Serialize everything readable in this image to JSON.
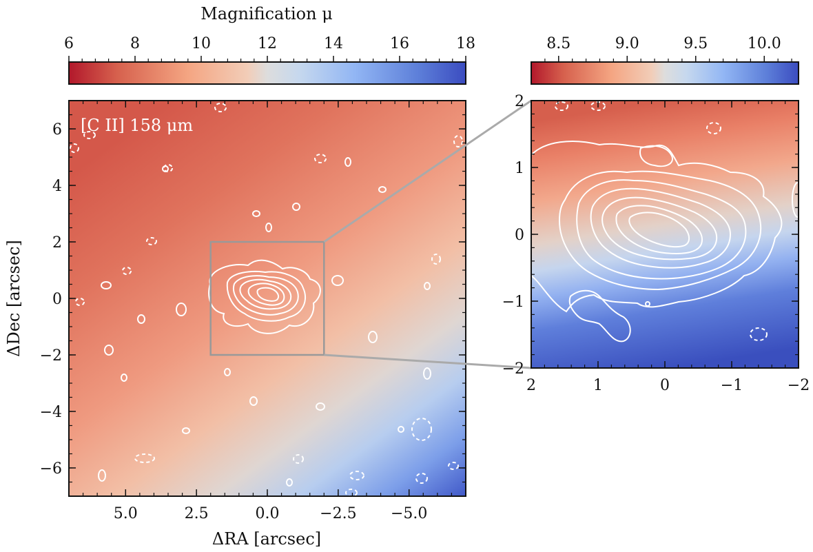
{
  "chart_data": [
    {
      "type": "heatmap",
      "title": "",
      "overlay_label": "[C II] 158 μm",
      "xlabel": "ΔRA [arcsec]",
      "ylabel": "ΔDec [arcsec]",
      "xlim": [
        7,
        -7
      ],
      "ylim": [
        -7,
        7
      ],
      "xticks": [
        5.0,
        2.5,
        0.0,
        -2.5,
        -5.0
      ],
      "xticklabels": [
        "5.0",
        "2.5",
        "0.0",
        "−2.5",
        "−5.0"
      ],
      "yticks": [
        6,
        4,
        2,
        0,
        -2,
        -4,
        -6
      ],
      "yticklabels": [
        "6",
        "4",
        "2",
        "0",
        "−2",
        "−4",
        "−6"
      ],
      "colorbar": {
        "label": "Magnification μ",
        "range": [
          6,
          18
        ],
        "ticks": [
          6,
          8,
          10,
          12,
          14,
          16,
          18
        ],
        "ticklabels": [
          "6",
          "8",
          "10",
          "12",
          "14",
          "16",
          "18"
        ],
        "cmap": "coolwarm_r"
      },
      "zoom_box": {
        "x": [
          2,
          -2
        ],
        "y": [
          -2,
          2
        ]
      },
      "contours": "white; solid = positive levels, dashed = negative levels; emission peak near (0, 0)"
    },
    {
      "type": "heatmap",
      "title": "",
      "xlabel": "",
      "ylabel": "",
      "xlim": [
        2,
        -2
      ],
      "ylim": [
        -2,
        2
      ],
      "xticks": [
        2,
        1,
        0,
        -1,
        -2
      ],
      "xticklabels": [
        "2",
        "1",
        "0",
        "−1",
        "−2"
      ],
      "yticks": [
        2,
        1,
        0,
        -1,
        -2
      ],
      "yticklabels": [
        "2",
        "1",
        "0",
        "−1",
        "−2"
      ],
      "colorbar": {
        "range": [
          8.3,
          10.25
        ],
        "ticks": [
          8.5,
          9.0,
          9.5,
          10.0
        ],
        "ticklabels": [
          "8.5",
          "9.0",
          "9.5",
          "10.0"
        ],
        "cmap": "coolwarm_r"
      },
      "contours": "white; nested closed contours centred near (0, 0.1)"
    }
  ],
  "colors": {
    "cmap_low": "#b2182b",
    "cmap_mid": "#dddddd",
    "cmap_high": "#3b4cc0",
    "contour": "#ffffff",
    "zoom_box": "#999999"
  }
}
